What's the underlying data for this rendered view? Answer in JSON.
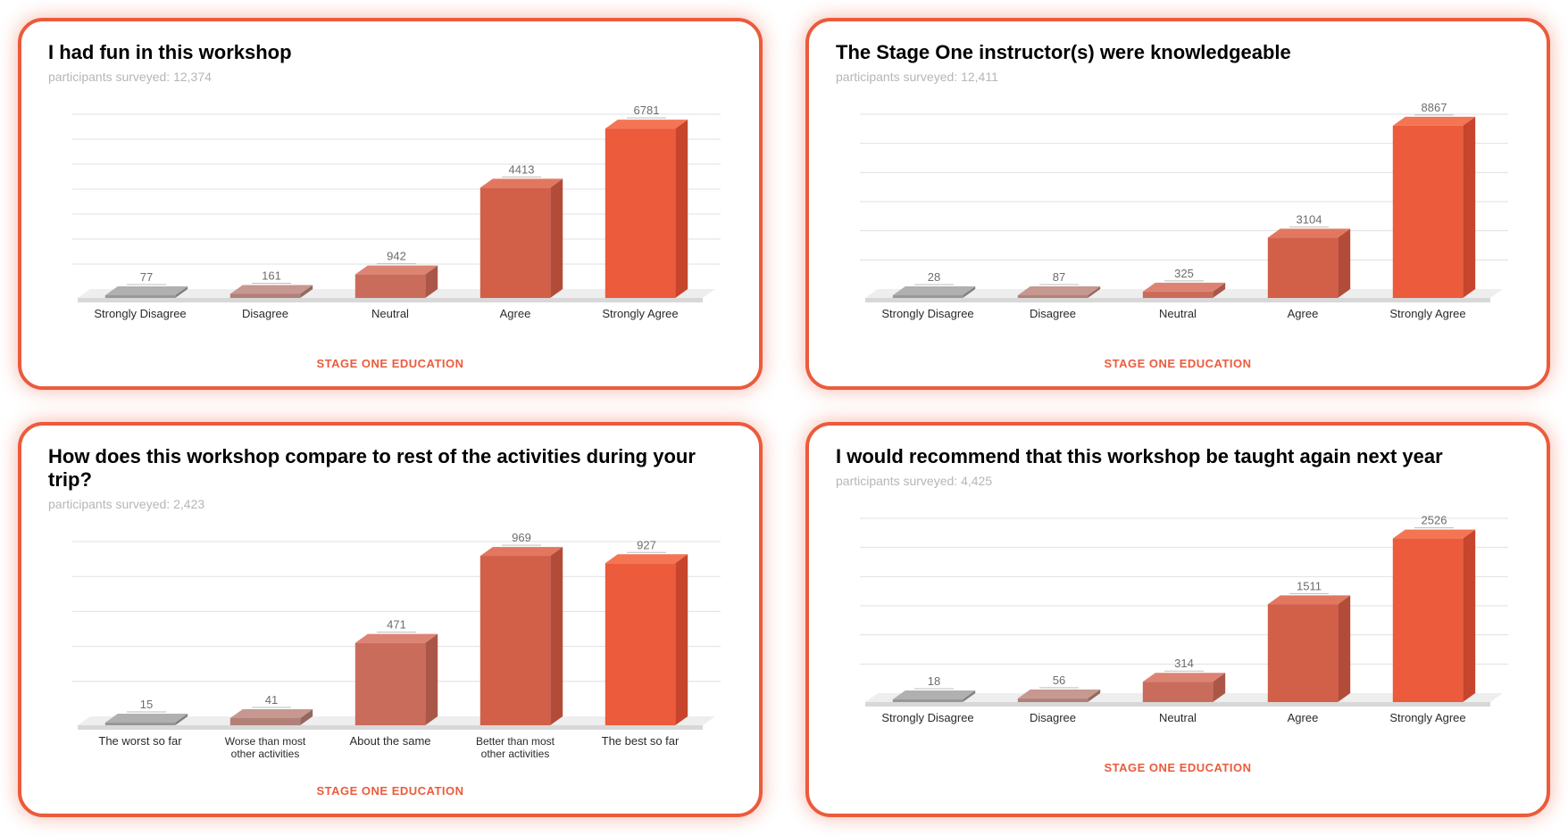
{
  "layout": {
    "background": "#ffffff",
    "card_border_color": "#eb5b3c",
    "card_border_width": 4,
    "card_border_radius": 28,
    "card_glow_color": "rgba(235,91,60,0.45)",
    "footer_text_color": "#eb5b3c",
    "title_color": "#000000",
    "sub_color": "#b6b6b6",
    "grid_line_color": "#e0e0e0",
    "floor_fill": "#eeeeee",
    "floor_shadow": "#d8d8d8",
    "value_label_color": "#6d6d6d",
    "category_label_color": "#2a2a2a"
  },
  "bar_palette": {
    "front": [
      "#989898",
      "#b18179",
      "#ca6c5c",
      "#d25f48",
      "#eb5b3c"
    ],
    "side": [
      "#7e7e7e",
      "#946860",
      "#aa5748",
      "#b24c38",
      "#c6452c"
    ],
    "top": [
      "#b0b0b0",
      "#c6988f",
      "#dc8373",
      "#e2775f",
      "#f47554"
    ]
  },
  "footer_label": "STAGE ONE EDUCATION",
  "sub_prefix": "participants surveyed: ",
  "charts": [
    {
      "id": "fun",
      "title": "I had fun in this workshop",
      "surveyed": "12,374",
      "ymax": 7000,
      "grid_step": 1000,
      "categories": [
        "Strongly Disagree",
        "Disagree",
        "Neutral",
        "Agree",
        "Strongly Agree"
      ],
      "values": [
        77,
        161,
        942,
        4413,
        6781
      ]
    },
    {
      "id": "knowledgeable",
      "title": "The Stage One instructor(s) were knowledgeable",
      "surveyed": "12,411",
      "ymax": 9000,
      "grid_step": 1500,
      "categories": [
        "Strongly Disagree",
        "Disagree",
        "Neutral",
        "Agree",
        "Strongly Agree"
      ],
      "values": [
        28,
        87,
        325,
        3104,
        8867
      ]
    },
    {
      "id": "compare",
      "title": "How does this workshop compare to rest of the activities during your trip?",
      "surveyed": "2,423",
      "ymax": 1000,
      "grid_step": 200,
      "categories": [
        "The worst so far",
        "Worse than most other activities",
        "About the same",
        "Better than most other activities",
        "The best so far"
      ],
      "values": [
        15,
        41,
        471,
        969,
        927
      ]
    },
    {
      "id": "recommend",
      "title": "I would recommend that this workshop be taught again next year",
      "surveyed": "4,425",
      "ymax": 2700,
      "grid_step": 450,
      "categories": [
        "Strongly Disagree",
        "Disagree",
        "Neutral",
        "Agree",
        "Strongly Agree"
      ],
      "values": [
        18,
        56,
        314,
        1511,
        2526
      ]
    }
  ]
}
